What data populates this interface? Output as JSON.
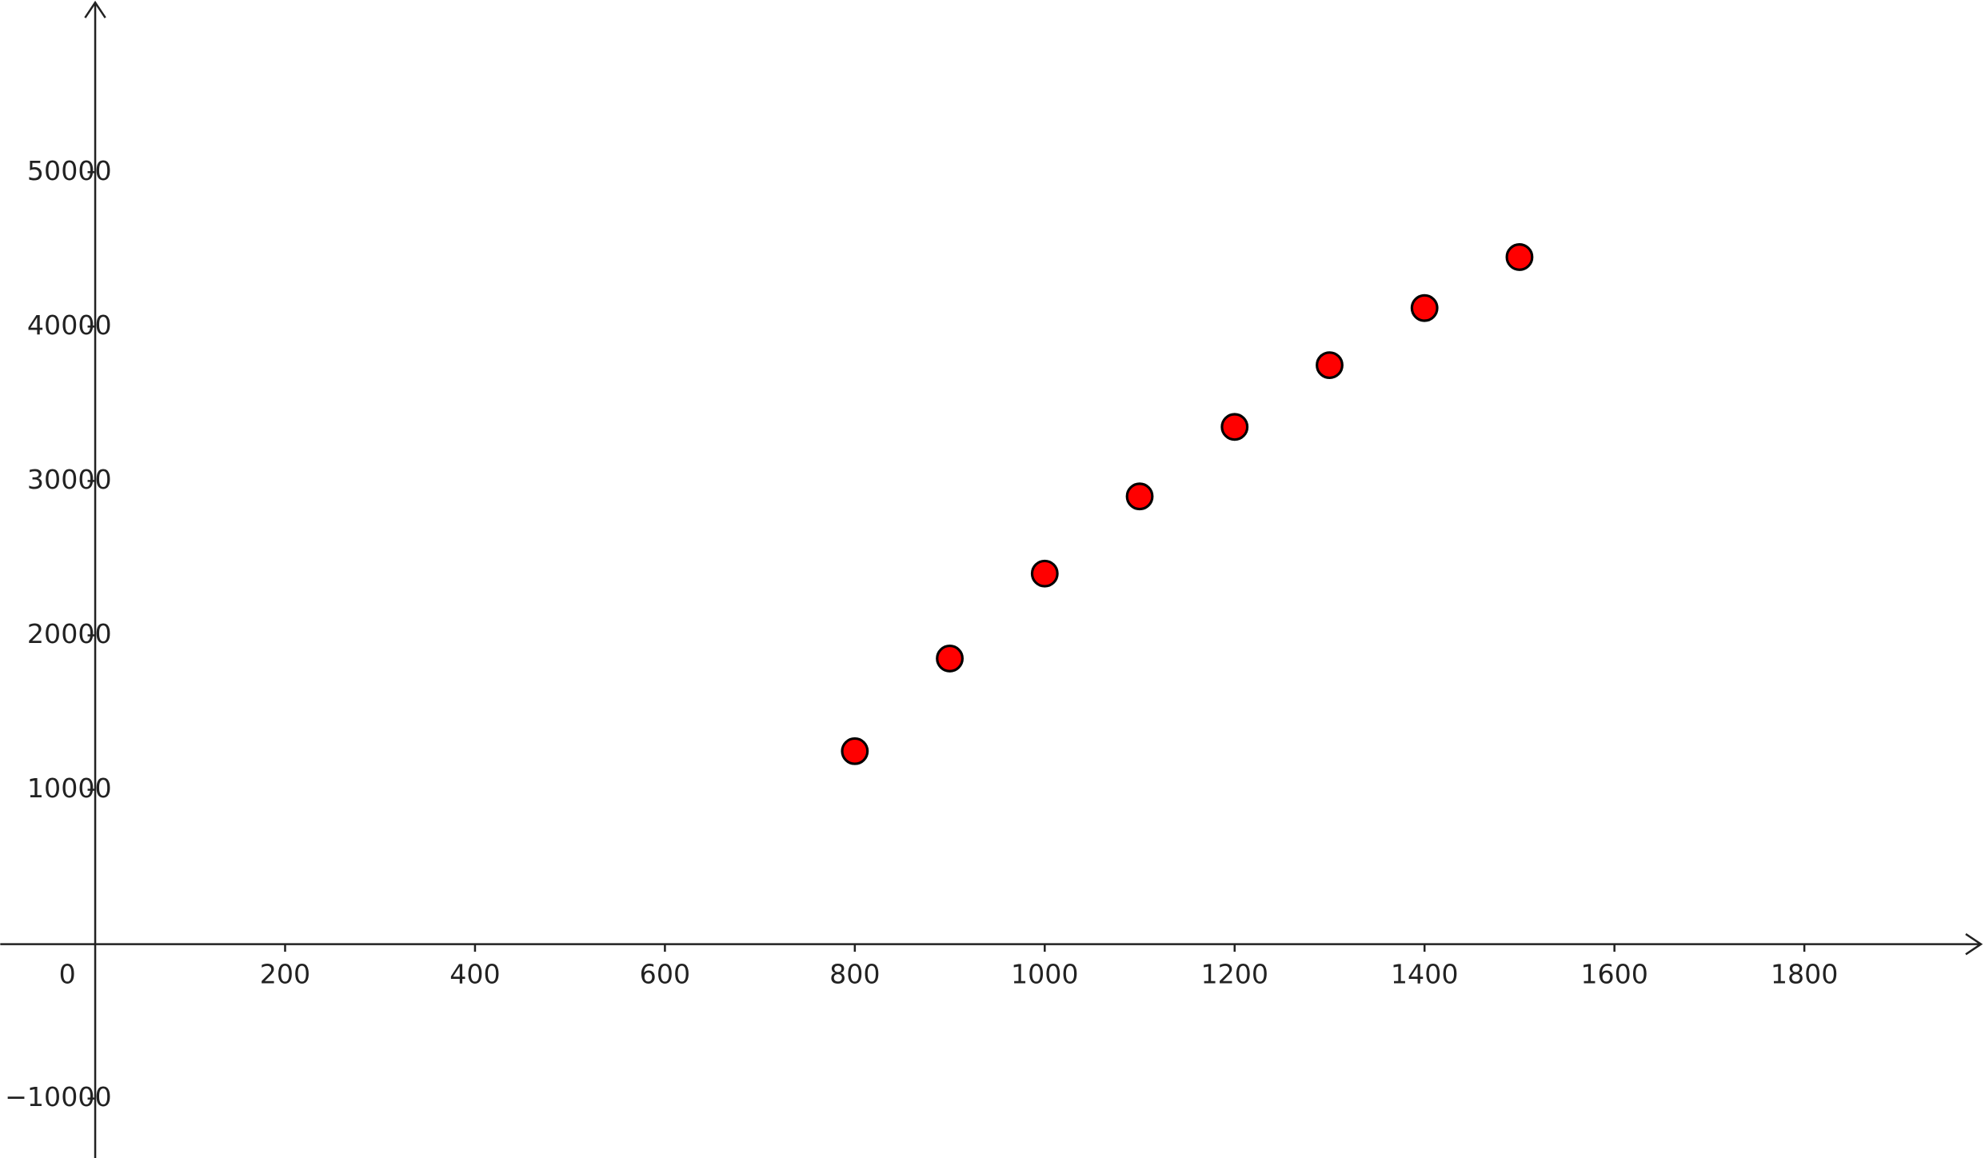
{
  "chart_data": {
    "type": "scatter",
    "x": [
      800,
      900,
      1000,
      1100,
      1200,
      1300,
      1400,
      1500
    ],
    "values": [
      12500,
      18500,
      24000,
      29000,
      33500,
      37500,
      41200,
      44500
    ],
    "color": "#ff0000",
    "xlim": [
      -100,
      1990
    ],
    "ylim": [
      -13850,
      61150
    ],
    "xticks": [
      0,
      200,
      400,
      600,
      800,
      1000,
      1200,
      1400,
      1600,
      1800
    ],
    "yticks": [
      {
        "value": -10000,
        "label": "−10000"
      },
      10000,
      20000,
      30000,
      40000,
      50000
    ],
    "grid": false
  }
}
